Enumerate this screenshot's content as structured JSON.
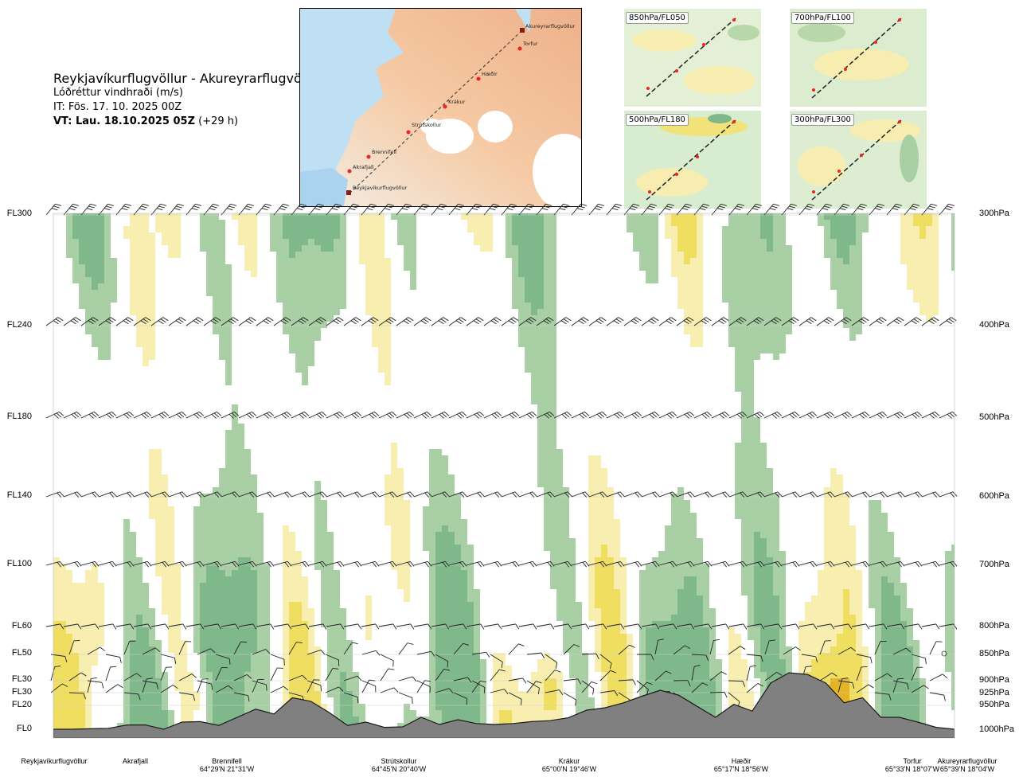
{
  "header": {
    "route": "Reykjavíkurflugvöllur - Akureyrarflugvöllur",
    "quantity": "Lóðréttur vindhraði (m/s)",
    "issue_time": "IT: Fös. 17. 10. 2025 00Z",
    "valid_label": "VT: Lau. 18.10.2025 05Z",
    "valid_offset": "(+29 h)"
  },
  "map": {
    "places": [
      "Akureyrarflugvöllur",
      "Torfur",
      "Hæðir",
      "Krákur",
      "Strútskollur",
      "Brennifell",
      "Akrafjall",
      "Reykjavíkurflugvöllur"
    ]
  },
  "insets": [
    {
      "label": "850hPa/FL050"
    },
    {
      "label": "700hPa/FL100"
    },
    {
      "label": "500hPa/FL180"
    },
    {
      "label": "300hPa/FL300"
    }
  ],
  "chart_data": {
    "type": "heatmap",
    "title": "Reykjavíkurflugvöllur - Akureyrarflugvöllur",
    "variable": "Lóðréttur vindhraði (m/s)",
    "y_left_ticks": [
      "FL300",
      "FL240",
      "FL180",
      "FL140",
      "FL100",
      "FL60",
      "FL50",
      "FL30",
      "FL30",
      "FL20",
      "FL0"
    ],
    "y_right_ticks": [
      "300hPa",
      "400hPa",
      "500hPa",
      "600hPa",
      "700hPa",
      "800hPa",
      "850hPa",
      "900hPa",
      "925hPa",
      "950hPa",
      "1000hPa"
    ],
    "y_pressure_hpa": [
      300,
      400,
      500,
      600,
      700,
      800,
      850,
      900,
      925,
      950,
      1000
    ],
    "x_waypoints": [
      {
        "name": "Reykjavíkurflugvöllur",
        "coord": ""
      },
      {
        "name": "Akrafjall",
        "coord": ""
      },
      {
        "name": "Brennifell",
        "coord": "64°29'N 21°31'W"
      },
      {
        "name": "Strútskollur",
        "coord": "64°45'N 20°40'W"
      },
      {
        "name": "Krákur",
        "coord": "65°00'N 19°46'W"
      },
      {
        "name": "Hæðir",
        "coord": "65°17'N 18°56'W"
      },
      {
        "name": "Torfur",
        "coord": "65°33'N 18°07'W"
      },
      {
        "name": "Akureyrarflugvöllur",
        "coord": "65°39'N 18°04'W"
      }
    ],
    "x_route_fraction": [
      0.0,
      0.08,
      0.18,
      0.38,
      0.56,
      0.74,
      0.93,
      1.0
    ],
    "terrain_top_hpa": [
      1000,
      1000,
      999,
      998,
      991,
      991,
      1000,
      985,
      984,
      992,
      975,
      958,
      968,
      935,
      942,
      965,
      992,
      985,
      996,
      995,
      975,
      990,
      980,
      988,
      990,
      988,
      984,
      982,
      976,
      960,
      955,
      945,
      932,
      920,
      930,
      952,
      975,
      948,
      962,
      905,
      885,
      888,
      905,
      945,
      935,
      975,
      975,
      985,
      996,
      1000
    ],
    "color_scale": [
      {
        "value": -1.0,
        "color": "#7fb88a"
      },
      {
        "value": -0.5,
        "color": "#a9cfa4"
      },
      {
        "value": -0.2,
        "color": "#d4ead0"
      },
      {
        "value": 0.0,
        "color": "#ffffff"
      },
      {
        "value": 0.2,
        "color": "#f7eeb0"
      },
      {
        "value": 0.5,
        "color": "#efde60"
      },
      {
        "value": 1.0,
        "color": "#e4b326"
      },
      {
        "value": 2.0,
        "color": "#c87a1c"
      },
      {
        "value": 3.0,
        "color": "#8a3a10"
      }
    ]
  }
}
